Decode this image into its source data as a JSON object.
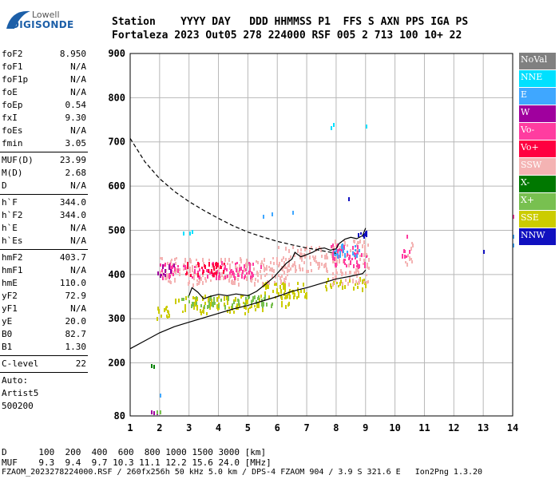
{
  "logo": {
    "line1": "Lowell",
    "line2": "DIGISONDE"
  },
  "header": {
    "line1": [
      "Station",
      "YYYY DAY",
      "DDD HHMMSS P1",
      "FFS S AXN PPS IGA PS"
    ],
    "line2": [
      "Fortaleza",
      "2023 Out05",
      "278 224000 RSF",
      "005 2 713 100 10+ 22"
    ]
  },
  "params": {
    "group1": [
      {
        "label": "foF2",
        "value": "8.950"
      },
      {
        "label": "foF1",
        "value": "N/A"
      },
      {
        "label": "foF1p",
        "value": "N/A"
      },
      {
        "label": "foE",
        "value": "N/A"
      },
      {
        "label": "foEp",
        "value": "0.54"
      },
      {
        "label": "fxI",
        "value": "9.30"
      },
      {
        "label": "foEs",
        "value": "N/A"
      },
      {
        "label": "fmin",
        "value": "3.05"
      }
    ],
    "group2": [
      {
        "label": "MUF(D)",
        "value": "23.99"
      },
      {
        "label": "M(D)",
        "value": "2.68"
      },
      {
        "label": "D",
        "value": "N/A"
      }
    ],
    "group3": [
      {
        "label": "h`F",
        "value": "344.0"
      },
      {
        "label": "h`F2",
        "value": "344.0"
      },
      {
        "label": "h`E",
        "value": "N/A"
      },
      {
        "label": "h`Es",
        "value": "N/A"
      }
    ],
    "group4": [
      {
        "label": "hmF2",
        "value": "403.7"
      },
      {
        "label": "hmF1",
        "value": "N/A"
      },
      {
        "label": "hmE",
        "value": "110.0"
      },
      {
        "label": "yF2",
        "value": "72.9"
      },
      {
        "label": "yF1",
        "value": "N/A"
      },
      {
        "label": "yE",
        "value": "20.0"
      },
      {
        "label": "B0",
        "value": "82.7"
      },
      {
        "label": "B1",
        "value": "1.30"
      }
    ],
    "group5": [
      {
        "label": "C-level",
        "value": "22"
      }
    ],
    "autoscale": [
      "Auto:",
      "Artist5",
      "500200"
    ]
  },
  "legend": [
    {
      "label": "NoVal",
      "color": "#808080"
    },
    {
      "label": "NNE",
      "color": "#00e0ff"
    },
    {
      "label": "E",
      "color": "#3fa7ff"
    },
    {
      "label": "W",
      "color": "#a0009e"
    },
    {
      "label": "Vo-",
      "color": "#ff3ca0"
    },
    {
      "label": "Vo+",
      "color": "#ff0040"
    },
    {
      "label": "SSW",
      "color": "#f4b3b3"
    },
    {
      "label": "X-",
      "color": "#007800"
    },
    {
      "label": "X+",
      "color": "#78c050"
    },
    {
      "label": "SSE",
      "color": "#cccc00"
    },
    {
      "label": "NNW",
      "color": "#1010c0"
    }
  ],
  "footer": {
    "line1": "D      100  200  400  600  800 1000 1500 3000 [km]",
    "line2": "MUF    9.3  9.4  9.7 10.3 11.1 12.2 15.6 24.0 [MHz]",
    "line3": "FZAOM_2023278224000.RSF / 260fx256h 50 kHz 5.0 km / DPS-4 FZAOM 904 / 3.9 S 321.6 E   Ion2Png 1.3.20"
  },
  "chart_data": {
    "type": "scatter",
    "title": "",
    "xlabel": "",
    "ylabel": "",
    "xlim": [
      1,
      14
    ],
    "ylim": [
      80,
      900
    ],
    "x_ticks": [
      1,
      2,
      3,
      4,
      5,
      6,
      7,
      8,
      9,
      10,
      11,
      12,
      13,
      14
    ],
    "y_ticks": [
      80,
      200,
      300,
      400,
      500,
      600,
      700,
      800,
      900
    ],
    "grid": true,
    "legend_position": "right",
    "series": [
      {
        "x": [
          1.0,
          1.5,
          2.0,
          2.5,
          3.0,
          3.5,
          4.0,
          4.5,
          5.0,
          5.5,
          6.0,
          6.5,
          7.0,
          7.5,
          8.0
        ],
        "y": [
          708,
          655,
          617,
          588,
          565,
          545,
          527,
          510,
          496,
          485,
          475,
          467,
          460,
          454,
          448
        ],
        "style": "dashed"
      },
      {
        "x": [
          1.0,
          1.5,
          2.0,
          2.5,
          3.0,
          3.5,
          4.0,
          4.5,
          5.0,
          5.5,
          6.0,
          6.5,
          7.0,
          7.5,
          8.0,
          8.5,
          8.9,
          9.0
        ],
        "y": [
          232,
          250,
          268,
          282,
          292,
          302,
          312,
          322,
          330,
          340,
          350,
          362,
          370,
          380,
          390,
          396,
          402,
          410
        ],
        "style": "solid"
      },
      {
        "x": [
          3.0,
          3.1,
          3.3,
          3.5,
          3.7,
          4.0,
          4.3,
          4.6,
          5.0,
          5.3,
          5.6,
          5.9,
          6.1,
          6.3,
          6.5,
          6.6,
          6.8,
          7.0,
          7.2,
          7.4,
          7.6,
          7.8,
          8.0,
          8.1,
          8.3,
          8.5,
          8.7,
          8.9,
          9.0
        ],
        "y": [
          352,
          370,
          360,
          345,
          350,
          355,
          352,
          356,
          352,
          362,
          378,
          395,
          410,
          425,
          435,
          450,
          440,
          445,
          450,
          458,
          460,
          455,
          458,
          470,
          480,
          484,
          481,
          488,
          505
        ],
        "style": "solid"
      }
    ],
    "clusters": [
      {
        "color": "#cccc00",
        "x": [
          1.8,
          2.3
        ],
        "y": [
          300,
          335
        ]
      },
      {
        "color": "#cccc00",
        "x": [
          2.5,
          5.5
        ],
        "y": [
          315,
          355
        ]
      },
      {
        "color": "#cccc00",
        "x": [
          5.5,
          7.0
        ],
        "y": [
          345,
          385
        ]
      },
      {
        "color": "#cccc00",
        "x": [
          7.6,
          9.0
        ],
        "y": [
          370,
          395
        ]
      },
      {
        "color": "#78c050",
        "x": [
          2.7,
          5.8
        ],
        "y": [
          330,
          355
        ]
      },
      {
        "color": "#f4b3b3",
        "x": [
          2.0,
          6.5
        ],
        "y": [
          380,
          440
        ]
      },
      {
        "color": "#f4b3b3",
        "x": [
          6.0,
          8.0
        ],
        "y": [
          410,
          465
        ]
      },
      {
        "color": "#f4b3b3",
        "x": [
          7.8,
          9.1
        ],
        "y": [
          380,
          480
        ]
      },
      {
        "color": "#ff3ca0",
        "x": [
          2.0,
          5.5
        ],
        "y": [
          395,
          430
        ]
      },
      {
        "color": "#ff3ca0",
        "x": [
          7.8,
          9.0
        ],
        "y": [
          420,
          470
        ]
      },
      {
        "color": "#a0009e",
        "x": [
          1.9,
          2.5
        ],
        "y": [
          400,
          425
        ]
      },
      {
        "color": "#ff0040",
        "x": [
          2.8,
          4.2
        ],
        "y": [
          400,
          430
        ]
      },
      {
        "color": "#3fa7ff",
        "x": [
          7.9,
          8.8
        ],
        "y": [
          445,
          475
        ]
      },
      {
        "color": "#1010c0",
        "x": [
          8.7,
          9.0
        ],
        "y": [
          485,
          500
        ]
      },
      {
        "color": "#cccc00",
        "x": [
          6.0,
          6.4
        ],
        "y": [
          330,
          380
        ]
      },
      {
        "color": "#f4b3b3",
        "x": [
          10.3,
          10.6
        ],
        "y": [
          425,
          480
        ]
      },
      {
        "color": "#ff3ca0",
        "x": [
          10.2,
          10.5
        ],
        "y": [
          440,
          460
        ]
      }
    ],
    "scatter_points": [
      {
        "color": "#00e0ff",
        "x": [
          7.8,
          7.9,
          9.0
        ],
        "y": [
          735,
          742,
          740
        ]
      },
      {
        "color": "#00e0ff",
        "x": [
          2.8,
          3.0,
          3.1
        ],
        "y": [
          498,
          497,
          500
        ]
      },
      {
        "color": "#3fa7ff",
        "x": [
          5.5,
          5.8,
          6.5,
          14.0,
          14.0
        ],
        "y": [
          535,
          540,
          545,
          490,
          470
        ]
      },
      {
        "color": "#1010c0",
        "x": [
          8.4,
          13.0
        ],
        "y": [
          575,
          456
        ]
      },
      {
        "color": "#ff3ca0",
        "x": [
          14.0,
          10.4
        ],
        "y": [
          535,
          490
        ]
      },
      {
        "color": "#008000",
        "x": [
          1.7,
          1.8
        ],
        "y": [
          197,
          196
        ]
      },
      {
        "color": "#a0009e",
        "x": [
          1.7,
          1.8,
          1.9,
          2.0
        ],
        "y": [
          92,
          90,
          91,
          93
        ]
      },
      {
        "color": "#78c050",
        "x": [
          1.9,
          2.0
        ],
        "y": [
          92,
          92
        ]
      },
      {
        "color": "#3fa7ff",
        "x": [
          2.0
        ],
        "y": [
          130
        ]
      }
    ]
  }
}
